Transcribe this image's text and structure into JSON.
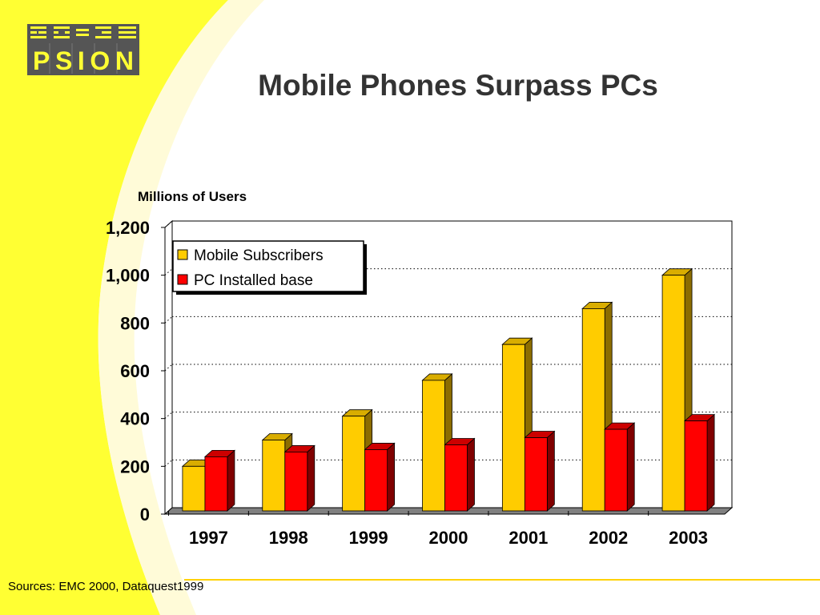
{
  "slide": {
    "title": "Mobile Phones Surpass PCs",
    "source_note": "Sources: EMC 2000, Dataquest1999",
    "logo_text": "PSION",
    "background_accent": "#ffff33"
  },
  "chart_data": {
    "type": "bar",
    "title": "Mobile Phones Surpass PCs",
    "ylabel": "Millions of Users",
    "xlabel": "",
    "categories": [
      "1997",
      "1998",
      "1999",
      "2000",
      "2001",
      "2002",
      "2003"
    ],
    "series": [
      {
        "name": "Mobile Subscribers",
        "values": [
          200,
          310,
          410,
          560,
          710,
          860,
          1000
        ],
        "color": "#ffcc00"
      },
      {
        "name": "PC Installed base",
        "values": [
          240,
          260,
          270,
          290,
          320,
          355,
          390
        ],
        "color": "#ff0000"
      }
    ],
    "ylim": [
      0,
      1200
    ],
    "yticks": [
      0,
      200,
      400,
      600,
      800,
      1000,
      1200
    ],
    "ytick_labels": [
      "0",
      "200",
      "400",
      "600",
      "800",
      "1,000",
      "1,200"
    ],
    "grid": true,
    "legend_position": "top-left",
    "three_d": true
  }
}
